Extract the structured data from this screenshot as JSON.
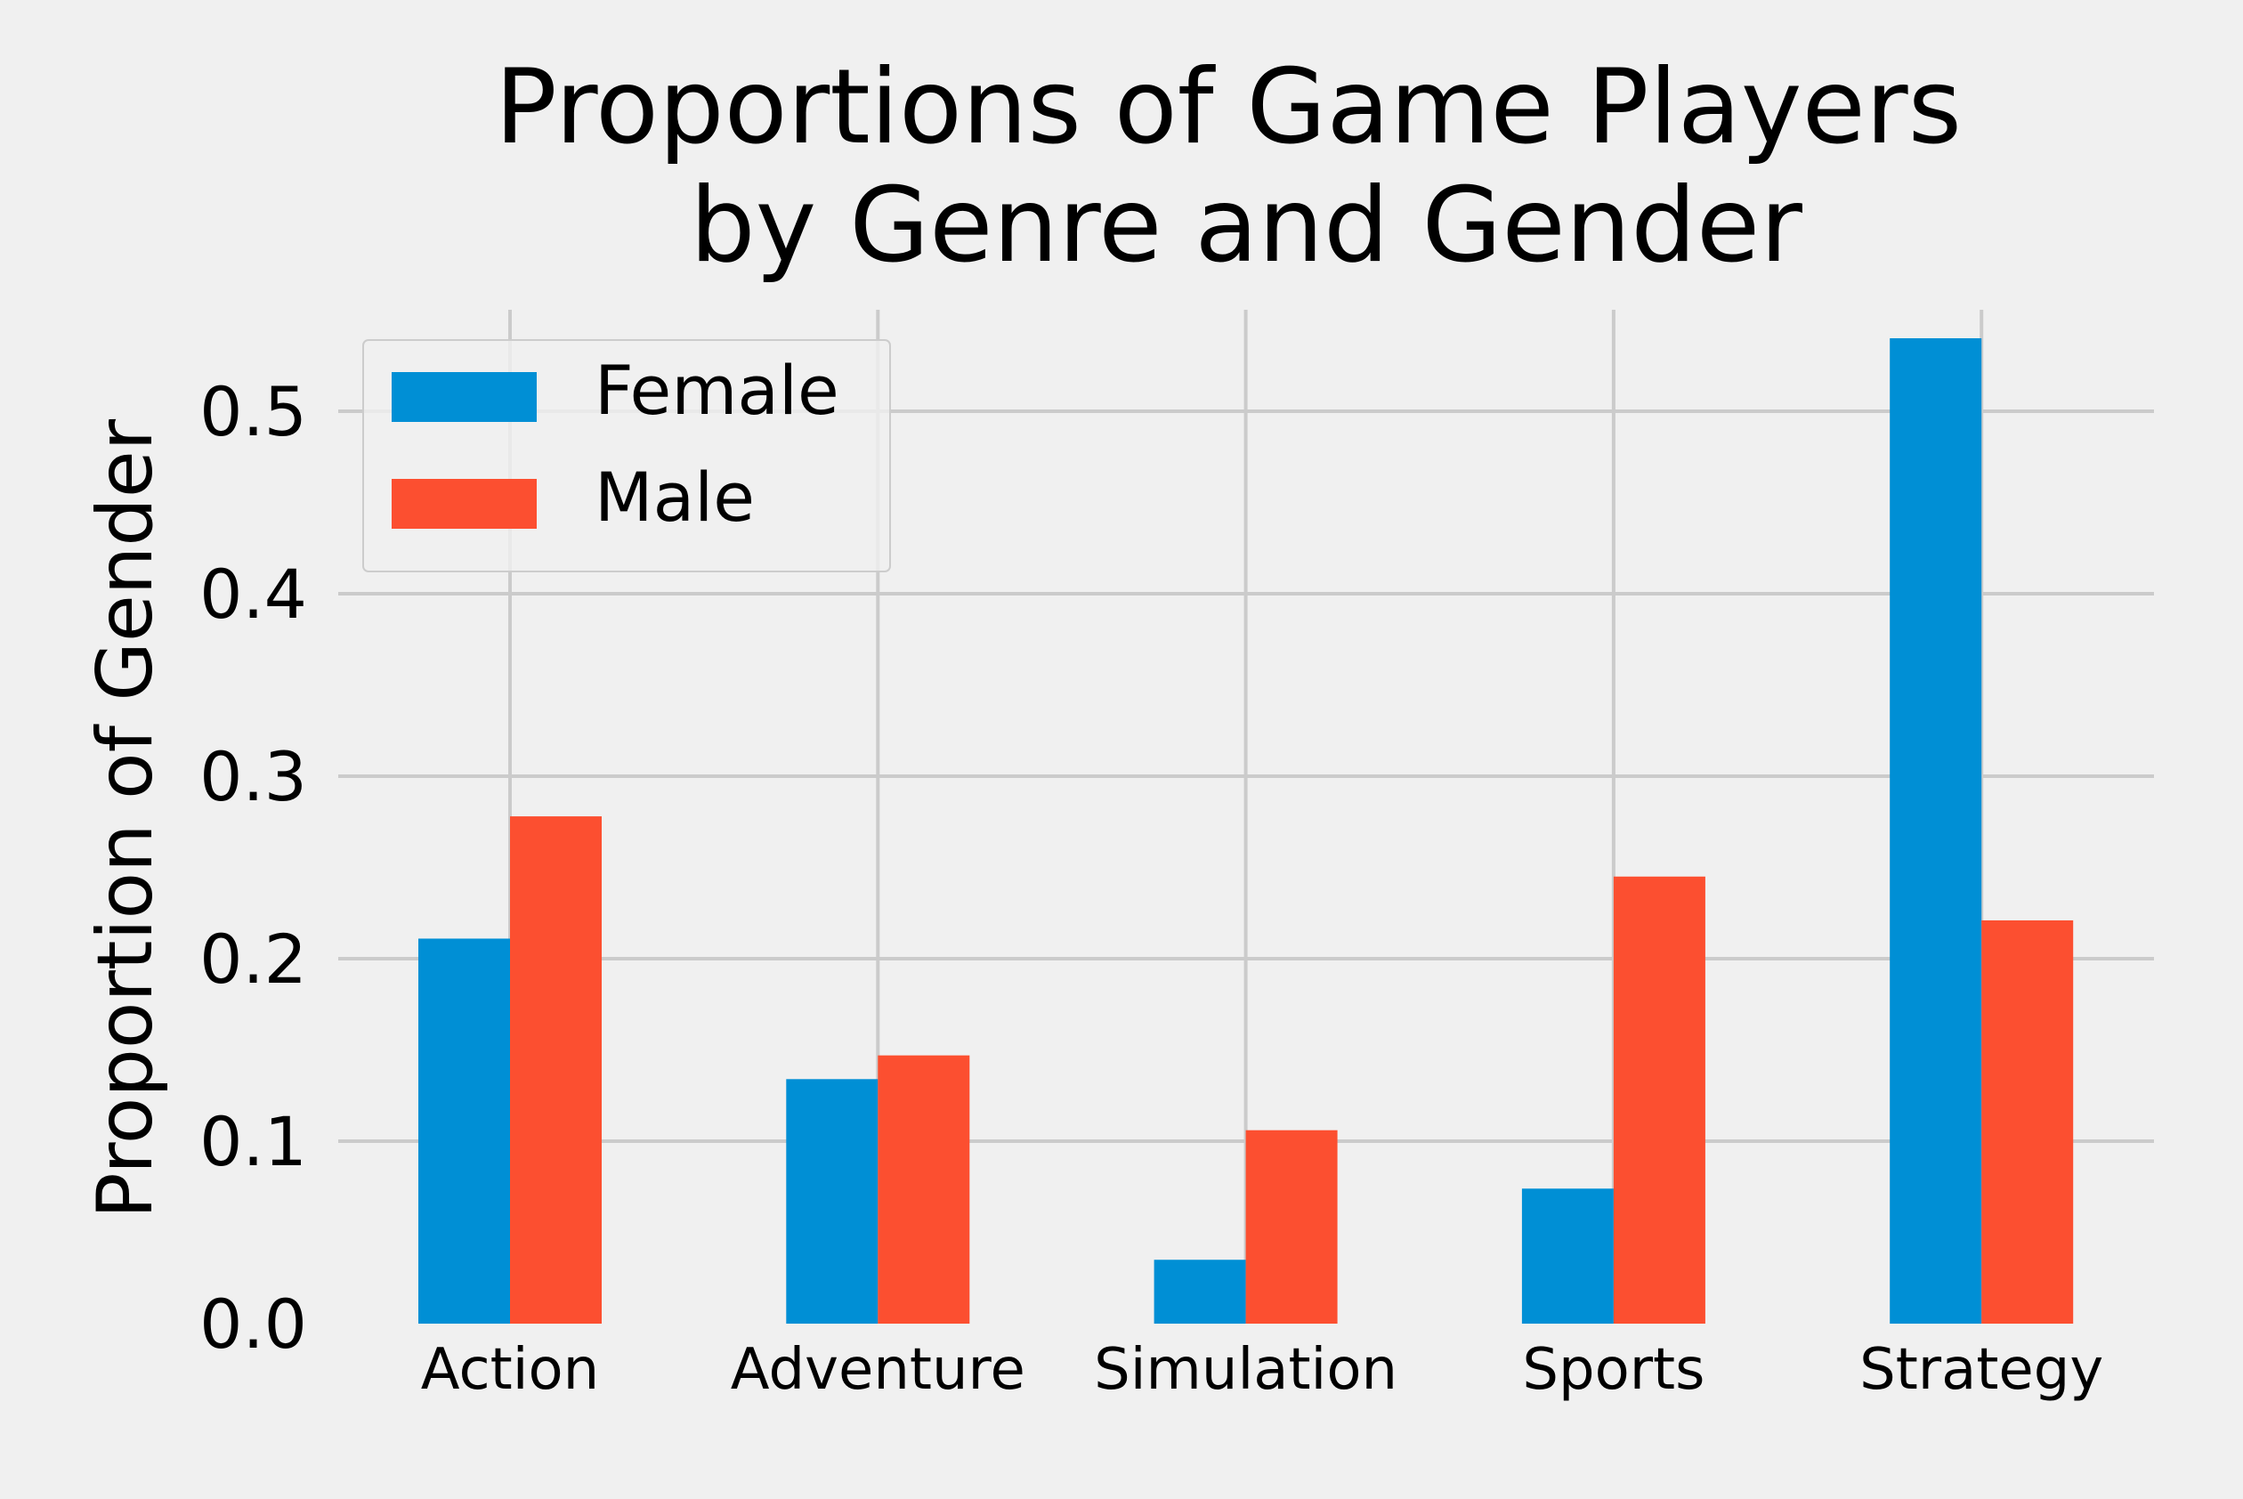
{
  "chart_data": {
    "type": "bar",
    "title_line1": "Proportions of Game Players",
    "title_line2": "by Genre and Gender",
    "xlabel": "",
    "ylabel": "Proportion of Gender",
    "categories": [
      "Action",
      "Adventure",
      "Simulation",
      "Sports",
      "Strategy"
    ],
    "series": [
      {
        "name": "Female",
        "color": "#008fd5",
        "values": [
          0.211,
          0.134,
          0.035,
          0.074,
          0.54
        ]
      },
      {
        "name": "Male",
        "color": "#fc4f30",
        "values": [
          0.278,
          0.147,
          0.106,
          0.245,
          0.221
        ]
      }
    ],
    "ylim": [
      0.0,
      0.56
    ],
    "yticks": [
      "0.0",
      "0.1",
      "0.2",
      "0.3",
      "0.4",
      "0.5"
    ],
    "grid": true,
    "legend_position": "top-left"
  }
}
